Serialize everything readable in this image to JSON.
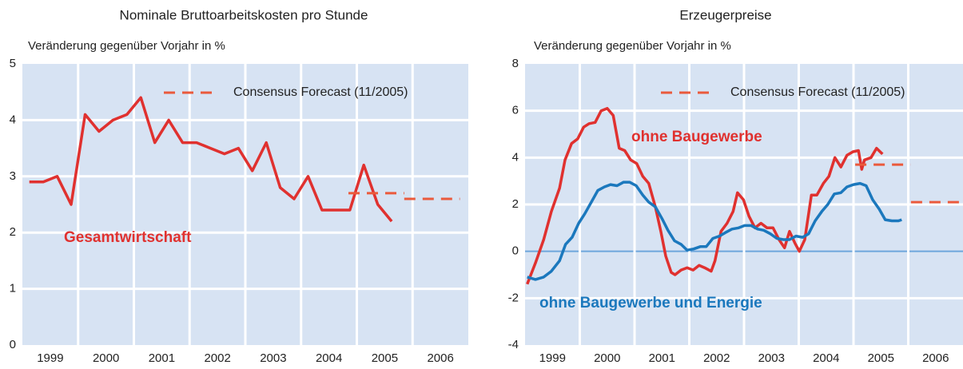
{
  "chart_data": [
    {
      "type": "line",
      "title": "Nominale Bruttoarbeitskosten pro Stunde",
      "subtitle": "Veränderung gegenüber Vorjahr in %",
      "xlim": [
        1999,
        2007
      ],
      "xticks": [
        {
          "value": 1999.5,
          "label": "1999"
        },
        {
          "value": 2000.5,
          "label": "2000"
        },
        {
          "value": 2001.5,
          "label": "2001"
        },
        {
          "value": 2002.5,
          "label": "2002"
        },
        {
          "value": 2003.5,
          "label": "2003"
        },
        {
          "value": 2004.5,
          "label": "2004"
        },
        {
          "value": 2005.5,
          "label": "2005"
        },
        {
          "value": 2006.5,
          "label": "2006"
        }
      ],
      "ylim": [
        0,
        5
      ],
      "yticks": [
        0,
        1,
        2,
        3,
        4,
        5
      ],
      "grid": true,
      "legend": "upper right",
      "background": "#d7e3f3",
      "series": [
        {
          "name": "Gesamtwirtschaft",
          "color": "#e0312f",
          "x": [
            1999.125,
            1999.375,
            1999.625,
            1999.875,
            2000.125,
            2000.375,
            2000.625,
            2000.875,
            2001.125,
            2001.375,
            2001.625,
            2001.875,
            2002.125,
            2002.375,
            2002.625,
            2002.875,
            2003.125,
            2003.375,
            2003.625,
            2003.875,
            2004.125,
            2004.375,
            2004.625,
            2004.875,
            2005.125,
            2005.375,
            2005.625
          ],
          "values": [
            2.9,
            2.9,
            3.0,
            2.5,
            4.1,
            3.8,
            4.0,
            4.1,
            4.4,
            3.6,
            4.0,
            3.6,
            3.6,
            3.5,
            3.4,
            3.5,
            3.1,
            3.6,
            2.8,
            2.6,
            3.0,
            2.4,
            2.4,
            2.4,
            3.2,
            2.5,
            2.2
          ]
        },
        {
          "name": "Consensus Forecast (11/2005)",
          "color": "#ea5a3c",
          "dash": true,
          "x": [
            2004.85,
            2005.85,
            null,
            2005.85,
            2006.85
          ],
          "values": [
            2.7,
            2.7,
            null,
            2.6,
            2.6
          ]
        }
      ]
    },
    {
      "type": "line",
      "title": "Erzeugerpreise",
      "subtitle": "Veränderung gegenüber Vorjahr in %",
      "xlim": [
        1999,
        2007
      ],
      "xticks": [
        {
          "value": 1999.5,
          "label": "1999"
        },
        {
          "value": 2000.5,
          "label": "2000"
        },
        {
          "value": 2001.5,
          "label": "2001"
        },
        {
          "value": 2002.5,
          "label": "2002"
        },
        {
          "value": 2003.5,
          "label": "2003"
        },
        {
          "value": 2004.5,
          "label": "2004"
        },
        {
          "value": 2005.5,
          "label": "2005"
        },
        {
          "value": 2006.5,
          "label": "2006"
        }
      ],
      "ylim": [
        -4,
        8
      ],
      "yticks": [
        -4,
        -2,
        0,
        2,
        4,
        6,
        8
      ],
      "grid": true,
      "legend": "upper right",
      "background": "#d7e3f3",
      "zero_line_color": "#6ea6dc",
      "series": [
        {
          "name": "ohne Baugewerbe",
          "color": "#e0312f",
          "x": [
            1999.04,
            1999.19,
            1999.34,
            1999.48,
            1999.63,
            1999.73,
            1999.85,
            1999.96,
            2000.07,
            2000.17,
            2000.28,
            2000.39,
            2000.5,
            2000.61,
            2000.72,
            2000.82,
            2000.93,
            2001.04,
            2001.15,
            2001.26,
            2001.38,
            2001.48,
            2001.57,
            2001.67,
            2001.74,
            2001.85,
            2001.96,
            2002.07,
            2002.18,
            2002.28,
            2002.4,
            2002.47,
            2002.58,
            2002.69,
            2002.8,
            2002.88,
            2002.99,
            2003.09,
            2003.2,
            2003.31,
            2003.42,
            2003.53,
            2003.64,
            2003.74,
            2003.83,
            2003.93,
            2004.01,
            2004.11,
            2004.23,
            2004.33,
            2004.45,
            2004.55,
            2004.66,
            2004.77,
            2004.88,
            2004.99,
            2005.09,
            2005.15,
            2005.2,
            2005.32,
            2005.42,
            2005.53
          ],
          "values": [
            -1.4,
            -0.5,
            0.5,
            1.7,
            2.7,
            3.9,
            4.6,
            4.8,
            5.3,
            5.45,
            5.5,
            6.0,
            6.1,
            5.8,
            4.4,
            4.3,
            3.9,
            3.75,
            3.2,
            2.9,
            1.9,
            0.85,
            -0.2,
            -0.9,
            -1.0,
            -0.8,
            -0.7,
            -0.8,
            -0.6,
            -0.7,
            -0.85,
            -0.4,
            0.85,
            1.2,
            1.7,
            2.5,
            2.2,
            1.5,
            1.0,
            1.2,
            1.0,
            1.0,
            0.5,
            0.15,
            0.85,
            0.35,
            0,
            0.5,
            2.4,
            2.4,
            2.9,
            3.2,
            4.0,
            3.6,
            4.1,
            4.25,
            4.3,
            3.5,
            3.9,
            4.0,
            4.4,
            4.15
          ]
        },
        {
          "name": "ohne Baugewerbe und Energie",
          "color": "#1b78bd",
          "x": [
            1999.04,
            1999.19,
            1999.34,
            1999.48,
            1999.63,
            1999.74,
            1999.86,
            1999.98,
            2000.09,
            2000.21,
            2000.33,
            2000.45,
            2000.56,
            2000.68,
            2000.8,
            2000.91,
            2001.03,
            2001.15,
            2001.26,
            2001.38,
            2001.5,
            2001.61,
            2001.73,
            2001.85,
            2001.96,
            2002.08,
            2002.2,
            2002.31,
            2002.43,
            2002.55,
            2002.66,
            2002.78,
            2002.9,
            2003.01,
            2003.13,
            2003.25,
            2003.36,
            2003.48,
            2003.6,
            2003.72,
            2003.83,
            2003.95,
            2004.07,
            2004.18,
            2004.3,
            2004.42,
            2004.53,
            2004.65,
            2004.77,
            2004.88,
            2005.0,
            2005.12,
            2005.23,
            2005.35,
            2005.47,
            2005.58,
            2005.7,
            2005.82,
            2005.88
          ],
          "values": [
            -1.1,
            -1.2,
            -1.1,
            -0.85,
            -0.4,
            0.3,
            0.6,
            1.2,
            1.6,
            2.1,
            2.6,
            2.75,
            2.85,
            2.8,
            2.95,
            2.95,
            2.8,
            2.4,
            2.1,
            1.9,
            1.4,
            0.9,
            0.45,
            0.3,
            0.05,
            0.1,
            0.2,
            0.2,
            0.55,
            0.65,
            0.8,
            0.95,
            1.0,
            1.1,
            1.1,
            0.95,
            0.9,
            0.75,
            0.55,
            0.5,
            0.5,
            0.65,
            0.6,
            0.75,
            1.3,
            1.7,
            2.0,
            2.45,
            2.5,
            2.75,
            2.85,
            2.9,
            2.8,
            2.2,
            1.8,
            1.35,
            1.3,
            1.3,
            1.35
          ]
        },
        {
          "name": "Consensus Forecast (11/2005)",
          "color": "#ea5a3c",
          "dash": true,
          "x": [
            2005.03,
            2006.04,
            null,
            2006.05,
            2006.99
          ],
          "values": [
            3.7,
            3.7,
            null,
            2.1,
            2.1
          ]
        }
      ]
    }
  ]
}
